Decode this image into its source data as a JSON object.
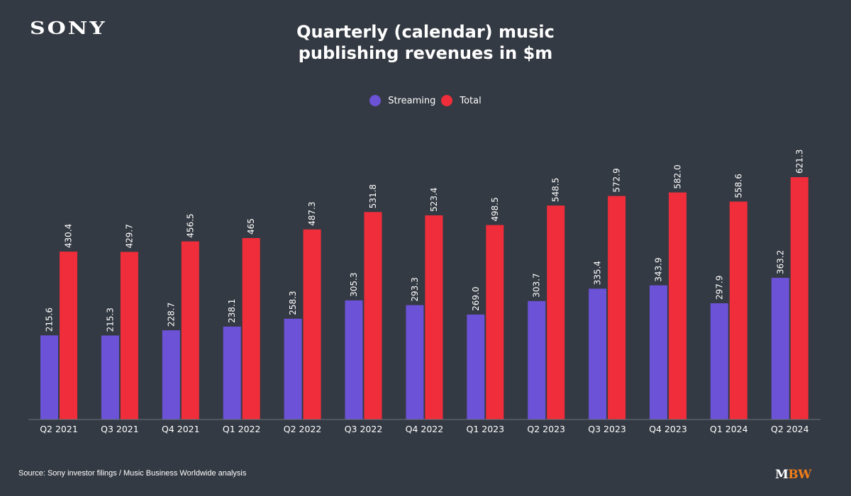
{
  "header": {
    "logo": "SONY",
    "title_line1": "Quarterly (calendar) music",
    "title_line2": "publishing revenues in $m"
  },
  "footer": {
    "source": "Source: Sony investor filings / Music Business Worldwide analysis",
    "brand_m": "M",
    "brand_bw": "BW"
  },
  "colors": {
    "background": "#343a43",
    "streaming": "#6b52d6",
    "total": "#f02d3a",
    "axis": "#6c727b",
    "brand_accent": "#f07d1a"
  },
  "chart_data": {
    "type": "bar",
    "title": "Quarterly (calendar) music publishing revenues in $m",
    "xlabel": "",
    "ylabel": "",
    "ylim": [
      0,
      621.3
    ],
    "grid": false,
    "legend_position": "top-center",
    "categories": [
      "Q2 2021",
      "Q3 2021",
      "Q4 2021",
      "Q1 2022",
      "Q2 2022",
      "Q3 2022",
      "Q4 2022",
      "Q1 2023",
      "Q2 2023",
      "Q3 2023",
      "Q4 2023",
      "Q1 2024",
      "Q2 2024"
    ],
    "series": [
      {
        "name": "Streaming",
        "values": [
          215.6,
          215.3,
          228.7,
          238.1,
          258.3,
          305.3,
          293.3,
          269.0,
          303.7,
          335.4,
          343.9,
          297.9,
          363.2
        ],
        "labels": [
          "215.6",
          "215.3",
          "228.7",
          "238.1",
          "258.3",
          "305.3",
          "293.3",
          "269.0",
          "303.7",
          "335.4",
          "343.9",
          "297.9",
          "363.2"
        ]
      },
      {
        "name": "Total",
        "values": [
          430.4,
          429.7,
          456.5,
          465,
          487.3,
          531.8,
          523.4,
          498.5,
          548.5,
          572.9,
          582.0,
          558.6,
          621.3
        ],
        "labels": [
          "430.4",
          "429.7",
          "456.5",
          "465",
          "487.3",
          "531.8",
          "523.4",
          "498.5",
          "548.5",
          "572.9",
          "582.0",
          "558.6",
          "621.3"
        ]
      }
    ]
  }
}
